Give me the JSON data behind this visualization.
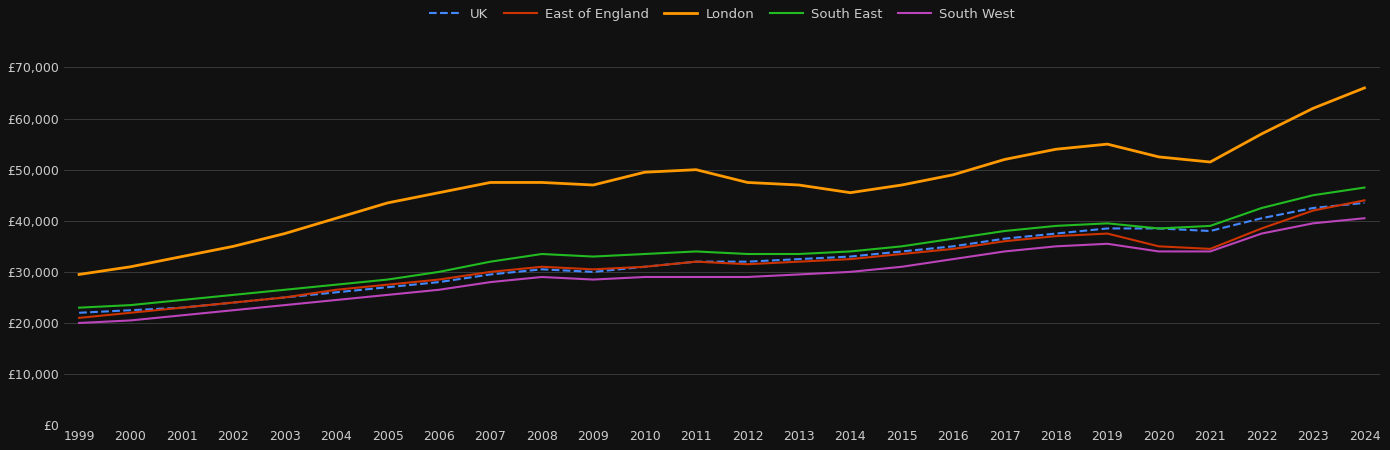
{
  "background_color": "#111111",
  "text_color": "#cccccc",
  "grid_color": "#3a3a3a",
  "ylim": [
    0,
    75000
  ],
  "yticks": [
    0,
    10000,
    20000,
    30000,
    40000,
    50000,
    60000,
    70000
  ],
  "ytick_labels": [
    "£0",
    "£10,000",
    "£20,000",
    "£30,000",
    "£40,000",
    "£50,000",
    "£60,000",
    "£70,000"
  ],
  "years": [
    1999,
    2000,
    2001,
    2002,
    2003,
    2004,
    2005,
    2006,
    2007,
    2008,
    2009,
    2010,
    2011,
    2012,
    2013,
    2014,
    2015,
    2016,
    2017,
    2018,
    2019,
    2020,
    2021,
    2022,
    2023,
    2024
  ],
  "series": {
    "UK": {
      "color": "#4488ff",
      "linestyle": "--",
      "linewidth": 1.5,
      "values": [
        22000,
        22500,
        23000,
        24000,
        25000,
        26000,
        27000,
        28000,
        29500,
        30500,
        30000,
        31000,
        32000,
        32000,
        32500,
        33000,
        34000,
        35000,
        36500,
        37500,
        38500,
        38500,
        38000,
        40500,
        42500,
        43500
      ]
    },
    "East of England": {
      "color": "#cc3300",
      "linestyle": "-",
      "linewidth": 1.5,
      "values": [
        21000,
        22000,
        23000,
        24000,
        25000,
        26500,
        27500,
        28500,
        30000,
        31000,
        30500,
        31000,
        32000,
        31500,
        32000,
        32500,
        33500,
        34500,
        36000,
        37000,
        37500,
        35000,
        34500,
        38500,
        42000,
        44000
      ]
    },
    "London": {
      "color": "#ff9900",
      "linestyle": "-",
      "linewidth": 2.0,
      "values": [
        29500,
        31000,
        33000,
        35000,
        37500,
        40500,
        43500,
        45500,
        47500,
        47500,
        47000,
        49500,
        50000,
        47500,
        47000,
        45500,
        47000,
        49000,
        52000,
        54000,
        55000,
        52500,
        51500,
        57000,
        62000,
        66000
      ]
    },
    "South East": {
      "color": "#22bb22",
      "linestyle": "-",
      "linewidth": 1.5,
      "values": [
        23000,
        23500,
        24500,
        25500,
        26500,
        27500,
        28500,
        30000,
        32000,
        33500,
        33000,
        33500,
        34000,
        33500,
        33500,
        34000,
        35000,
        36500,
        38000,
        39000,
        39500,
        38500,
        39000,
        42500,
        45000,
        46500
      ]
    },
    "South West": {
      "color": "#bb44bb",
      "linestyle": "-",
      "linewidth": 1.5,
      "values": [
        20000,
        20500,
        21500,
        22500,
        23500,
        24500,
        25500,
        26500,
        28000,
        29000,
        28500,
        29000,
        29000,
        29000,
        29500,
        30000,
        31000,
        32500,
        34000,
        35000,
        35500,
        34000,
        34000,
        37500,
        39500,
        40500
      ]
    }
  },
  "legend_labels_order": [
    "UK",
    "East of England",
    "London",
    "South East",
    "South West"
  ],
  "figsize": [
    13.9,
    4.5
  ],
  "dpi": 100
}
